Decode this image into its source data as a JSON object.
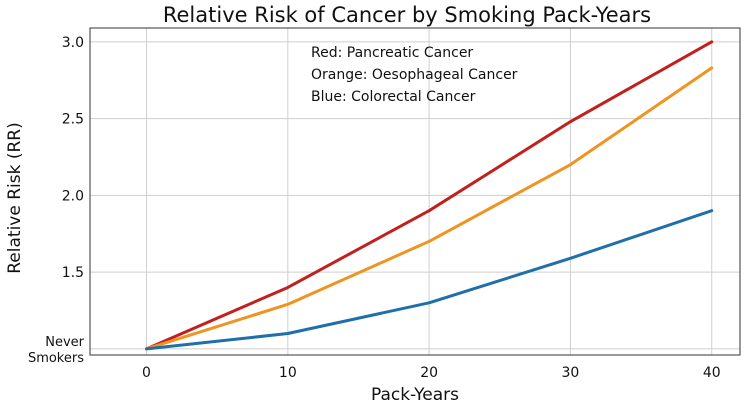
{
  "chart_data": {
    "type": "line",
    "title": "Relative Risk of Cancer by Smoking Pack-Years",
    "xlabel": "Pack-Years",
    "ylabel": "Relative Risk (RR)",
    "x": [
      0,
      10,
      20,
      30,
      40
    ],
    "xlim": [
      -4,
      42
    ],
    "ylim": [
      0.96,
      3.09
    ],
    "x_ticks": [
      0,
      10,
      20,
      30,
      40
    ],
    "y_ticks": [
      1.5,
      2.0,
      2.5,
      3.0
    ],
    "y_tick_labels": [
      "1.5",
      "2.0",
      "2.5",
      "3.0"
    ],
    "y_baseline_label": [
      "Never",
      "Smokers"
    ],
    "grid": true,
    "legend_lines": [
      "Red: Pancreatic Cancer",
      "Orange: Oesophageal Cancer",
      "Blue: Colorectal Cancer"
    ],
    "series": [
      {
        "color": "#c0201e",
        "values": [
          1.0,
          1.4,
          1.9,
          2.48,
          3.0
        ]
      },
      {
        "color": "#ee9420",
        "values": [
          1.0,
          1.29,
          1.7,
          2.2,
          2.83
        ]
      },
      {
        "color": "#1f6fa8",
        "values": [
          1.0,
          1.1,
          1.3,
          1.59,
          1.9
        ]
      }
    ]
  }
}
